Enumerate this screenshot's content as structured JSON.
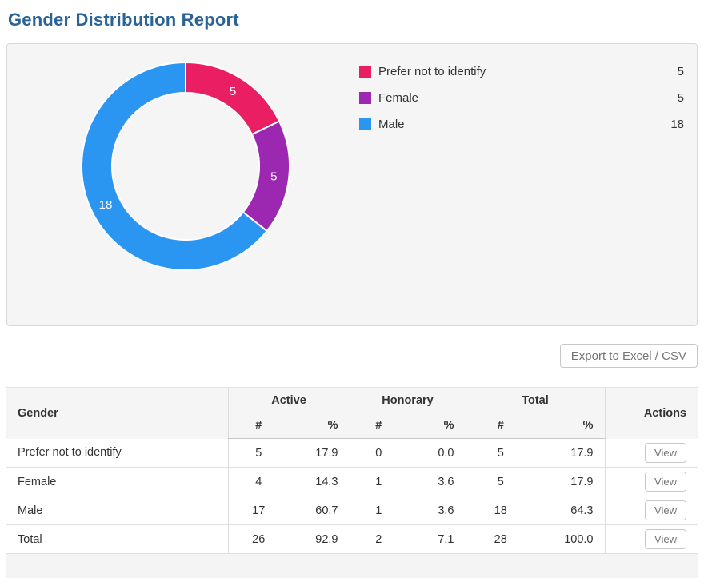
{
  "page": {
    "title": "Gender Distribution Report"
  },
  "export_button_label": "Export to Excel / CSV",
  "chart_data": {
    "type": "pie",
    "variant": "donut",
    "title": "",
    "legend_position": "right",
    "total": 28,
    "series": [
      {
        "label": "Prefer not to identify",
        "value": 5,
        "color": "#E91E63"
      },
      {
        "label": "Female",
        "value": 5,
        "color": "#9C27B0"
      },
      {
        "label": "Male",
        "value": 18,
        "color": "#2B96F1"
      }
    ]
  },
  "table": {
    "headers": {
      "gender": "Gender",
      "active": "Active",
      "honorary": "Honorary",
      "total": "Total",
      "actions": "Actions",
      "num": "#",
      "pct": "%"
    },
    "view_button_label": "View",
    "rows": [
      {
        "label": "Prefer not to identify",
        "active_n": "5",
        "active_pct": "17.9",
        "honorary_n": "0",
        "honorary_pct": "0.0",
        "total_n": "5",
        "total_pct": "17.9"
      },
      {
        "label": "Female",
        "active_n": "4",
        "active_pct": "14.3",
        "honorary_n": "1",
        "honorary_pct": "3.6",
        "total_n": "5",
        "total_pct": "17.9"
      },
      {
        "label": "Male",
        "active_n": "17",
        "active_pct": "60.7",
        "honorary_n": "1",
        "honorary_pct": "3.6",
        "total_n": "18",
        "total_pct": "64.3"
      },
      {
        "label": "Total",
        "active_n": "26",
        "active_pct": "92.9",
        "honorary_n": "2",
        "honorary_pct": "7.1",
        "total_n": "28",
        "total_pct": "100.0"
      }
    ]
  }
}
